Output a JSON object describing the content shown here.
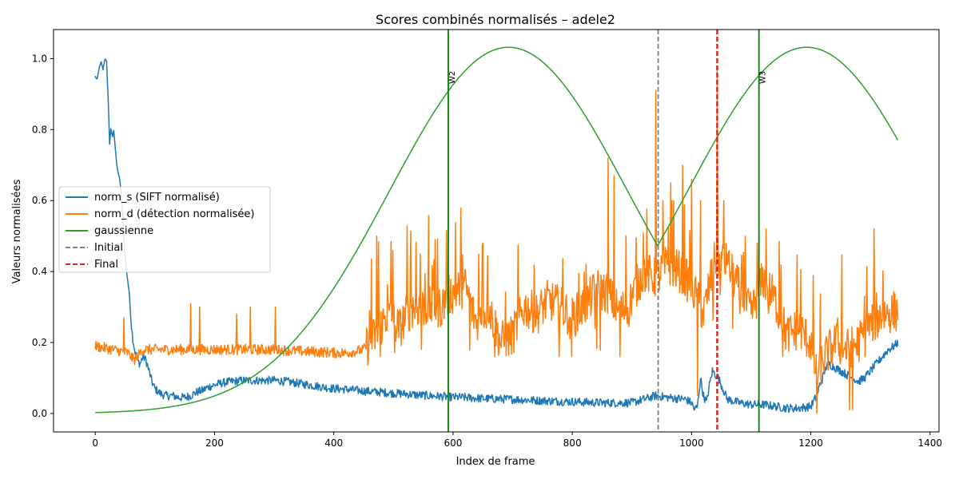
{
  "chart_data": {
    "type": "line",
    "title": "Scores combinés normalisés – adele2",
    "xlabel": "Index de frame",
    "ylabel": "Valeurs normalisées",
    "xlim": [
      -70,
      1415
    ],
    "ylim": [
      -0.052,
      1.082
    ],
    "xticks": [
      0,
      200,
      400,
      600,
      800,
      1000,
      1200,
      1400
    ],
    "yticks": [
      0.0,
      0.2,
      0.4,
      0.6,
      0.8,
      1.0
    ],
    "grid": false,
    "legend_position": "center-left",
    "n_frames": 1347,
    "colors": {
      "norm_s": "#1f77b4",
      "norm_d": "#ff7f0e",
      "gaussienne": "#2ca02c",
      "initial": "#808080",
      "final": "#d62728",
      "vline": "#008000"
    },
    "series": [
      {
        "name": "norm_s (SIFT normalisé)",
        "key": "norm_s",
        "style": "solid",
        "keypoints": [
          [
            0,
            0.95
          ],
          [
            3,
            0.94
          ],
          [
            6,
            0.97
          ],
          [
            10,
            0.99
          ],
          [
            13,
            0.97
          ],
          [
            16,
            1.0
          ],
          [
            19,
            0.99
          ],
          [
            22,
            0.87
          ],
          [
            24,
            0.76
          ],
          [
            26,
            0.8
          ],
          [
            29,
            0.78
          ],
          [
            31,
            0.8
          ],
          [
            33,
            0.76
          ],
          [
            36,
            0.7
          ],
          [
            38,
            0.68
          ],
          [
            40,
            0.67
          ],
          [
            43,
            0.63
          ],
          [
            46,
            0.56
          ],
          [
            48,
            0.49
          ],
          [
            51,
            0.42
          ],
          [
            54,
            0.38
          ],
          [
            57,
            0.34
          ],
          [
            60,
            0.26
          ],
          [
            63,
            0.21
          ],
          [
            66,
            0.18
          ],
          [
            70,
            0.15
          ],
          [
            75,
            0.14
          ],
          [
            80,
            0.16
          ],
          [
            85,
            0.15
          ],
          [
            90,
            0.12
          ],
          [
            95,
            0.09
          ],
          [
            100,
            0.07
          ],
          [
            110,
            0.055
          ],
          [
            120,
            0.05
          ],
          [
            130,
            0.05
          ],
          [
            140,
            0.045
          ],
          [
            150,
            0.045
          ],
          [
            160,
            0.05
          ],
          [
            170,
            0.06
          ],
          [
            180,
            0.065
          ],
          [
            190,
            0.075
          ],
          [
            200,
            0.08
          ],
          [
            210,
            0.085
          ],
          [
            220,
            0.088
          ],
          [
            230,
            0.09
          ],
          [
            240,
            0.092
          ],
          [
            250,
            0.093
          ],
          [
            260,
            0.093
          ],
          [
            280,
            0.093
          ],
          [
            300,
            0.093
          ],
          [
            320,
            0.09
          ],
          [
            340,
            0.085
          ],
          [
            360,
            0.08
          ],
          [
            380,
            0.075
          ],
          [
            400,
            0.07
          ],
          [
            420,
            0.068
          ],
          [
            440,
            0.065
          ],
          [
            460,
            0.062
          ],
          [
            480,
            0.06
          ],
          [
            500,
            0.057
          ],
          [
            520,
            0.055
          ],
          [
            540,
            0.052
          ],
          [
            560,
            0.05
          ],
          [
            580,
            0.048
          ],
          [
            600,
            0.046
          ],
          [
            620,
            0.045
          ],
          [
            650,
            0.042
          ],
          [
            700,
            0.04
          ],
          [
            750,
            0.036
          ],
          [
            800,
            0.033
          ],
          [
            850,
            0.03
          ],
          [
            900,
            0.03
          ],
          [
            940,
            0.05
          ],
          [
            960,
            0.045
          ],
          [
            990,
            0.04
          ],
          [
            1000,
            0.03
          ],
          [
            1005,
            0.01
          ],
          [
            1010,
            0.02
          ],
          [
            1015,
            0.1
          ],
          [
            1020,
            0.05
          ],
          [
            1025,
            0.03
          ],
          [
            1030,
            0.08
          ],
          [
            1035,
            0.12
          ],
          [
            1040,
            0.11
          ],
          [
            1045,
            0.1
          ],
          [
            1050,
            0.08
          ],
          [
            1060,
            0.04
          ],
          [
            1080,
            0.03
          ],
          [
            1100,
            0.025
          ],
          [
            1120,
            0.025
          ],
          [
            1140,
            0.02
          ],
          [
            1160,
            0.015
          ],
          [
            1180,
            0.015
          ],
          [
            1200,
            0.02
          ],
          [
            1210,
            0.05
          ],
          [
            1215,
            0.08
          ],
          [
            1220,
            0.1
          ],
          [
            1225,
            0.13
          ],
          [
            1230,
            0.14
          ],
          [
            1240,
            0.13
          ],
          [
            1250,
            0.12
          ],
          [
            1260,
            0.11
          ],
          [
            1270,
            0.1
          ],
          [
            1280,
            0.09
          ],
          [
            1290,
            0.1
          ],
          [
            1300,
            0.12
          ],
          [
            1310,
            0.14
          ],
          [
            1320,
            0.16
          ],
          [
            1330,
            0.18
          ],
          [
            1340,
            0.19
          ],
          [
            1346,
            0.2
          ]
        ],
        "noise": 0.012,
        "noise_start": 60
      },
      {
        "name": "norm_d (détection normalisée)",
        "key": "norm_d",
        "style": "solid",
        "keypoints": [
          [
            0,
            0.19
          ],
          [
            30,
            0.18
          ],
          [
            55,
            0.17
          ],
          [
            65,
            0.15
          ],
          [
            70,
            0.16
          ],
          [
            80,
            0.18
          ],
          [
            200,
            0.18
          ],
          [
            300,
            0.18
          ],
          [
            350,
            0.175
          ],
          [
            420,
            0.17
          ],
          [
            450,
            0.18
          ],
          [
            470,
            0.22
          ],
          [
            490,
            0.28
          ],
          [
            510,
            0.24
          ],
          [
            530,
            0.3
          ],
          [
            550,
            0.3
          ],
          [
            580,
            0.3
          ],
          [
            592,
            0.33
          ],
          [
            600,
            0.34
          ],
          [
            620,
            0.36
          ],
          [
            640,
            0.25
          ],
          [
            660,
            0.3
          ],
          [
            680,
            0.2
          ],
          [
            700,
            0.22
          ],
          [
            720,
            0.3
          ],
          [
            740,
            0.28
          ],
          [
            760,
            0.32
          ],
          [
            780,
            0.3
          ],
          [
            800,
            0.27
          ],
          [
            820,
            0.3
          ],
          [
            840,
            0.35
          ],
          [
            860,
            0.34
          ],
          [
            880,
            0.28
          ],
          [
            900,
            0.33
          ],
          [
            920,
            0.4
          ],
          [
            940,
            0.38
          ],
          [
            960,
            0.42
          ],
          [
            980,
            0.4
          ],
          [
            1000,
            0.36
          ],
          [
            1020,
            0.28
          ],
          [
            1040,
            0.44
          ],
          [
            1060,
            0.42
          ],
          [
            1080,
            0.35
          ],
          [
            1100,
            0.28
          ],
          [
            1120,
            0.38
          ],
          [
            1140,
            0.32
          ],
          [
            1160,
            0.22
          ],
          [
            1180,
            0.24
          ],
          [
            1200,
            0.2
          ],
          [
            1210,
            0.1
          ],
          [
            1220,
            0.15
          ],
          [
            1240,
            0.2
          ],
          [
            1260,
            0.18
          ],
          [
            1280,
            0.2
          ],
          [
            1300,
            0.25
          ],
          [
            1320,
            0.28
          ],
          [
            1346,
            0.29
          ]
        ],
        "noise": 0.06,
        "noise_start": 455,
        "spikes": [
          [
            48,
            0.27
          ],
          [
            160,
            0.31
          ],
          [
            175,
            0.3
          ],
          [
            237,
            0.28
          ],
          [
            260,
            0.3
          ],
          [
            302,
            0.3
          ],
          [
            460,
            0.29
          ],
          [
            545,
            0.45
          ],
          [
            570,
            0.49
          ],
          [
            650,
            0.48
          ],
          [
            860,
            0.72
          ],
          [
            870,
            0.67
          ],
          [
            890,
            0.5
          ],
          [
            940,
            0.91
          ],
          [
            965,
            0.65
          ],
          [
            985,
            0.7
          ],
          [
            1000,
            0.66
          ],
          [
            1015,
            0.6
          ],
          [
            1043,
            0.97
          ],
          [
            1060,
            0.45
          ],
          [
            1090,
            0.5
          ],
          [
            1110,
            0.48
          ],
          [
            1125,
            0.52
          ],
          [
            1245,
            0.27
          ],
          [
            1290,
            0.33
          ],
          [
            1310,
            0.34
          ]
        ],
        "dips": [
          [
            1210,
            0.0
          ],
          [
            1265,
            0.01
          ],
          [
            1270,
            0.01
          ],
          [
            1010,
            0.05
          ]
        ]
      },
      {
        "name": "gaussienne",
        "key": "gaussienne",
        "style": "solid",
        "gaussians": [
          {
            "amp": 1.032,
            "mu": 693,
            "sigma": 200
          },
          {
            "amp": 1.032,
            "mu": 1193,
            "sigma": 200
          }
        ]
      }
    ],
    "vlines": [
      {
        "name": "Initial",
        "x": 944,
        "style": "dashed",
        "key": "initial"
      },
      {
        "name": "Final",
        "x": 1043,
        "style": "dashed",
        "key": "final"
      }
    ],
    "annotated_vlines": [
      {
        "x": 592,
        "label": "W2"
      },
      {
        "x": 1113,
        "label": "W3"
      }
    ]
  }
}
